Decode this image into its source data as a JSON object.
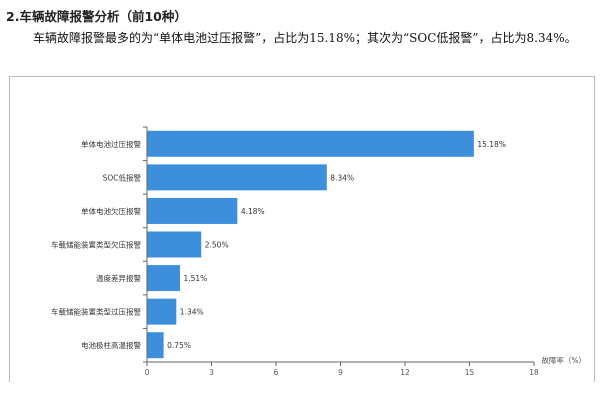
{
  "section": {
    "heading": "2.车辆故障报警分析（前10种）",
    "paragraph": "车辆故障报警最多的为“单体电池过压报警”，占比为15.18%；其次为“SOC低报警”，占比为8.34%。"
  },
  "chart_data": {
    "type": "bar",
    "orientation": "horizontal",
    "categories": [
      "单体电池过压报警",
      "SOC低报警",
      "单体电池欠压报警",
      "车载储能装置类型欠压报警",
      "温度差异报警",
      "车载储能装置类型过压报警",
      "电池极柱高温报警"
    ],
    "values": [
      15.18,
      8.34,
      4.18,
      2.5,
      1.51,
      1.34,
      0.75
    ],
    "value_labels": [
      "15.18%",
      "8.34%",
      "4.18%",
      "2.50%",
      "1.51%",
      "1.34%",
      "0.75%"
    ],
    "xticks": [
      "0",
      "3",
      "6",
      "9",
      "12",
      "15",
      "18"
    ],
    "xlim": [
      0,
      18
    ],
    "xlabel": "故障率（%）",
    "bar_color": "#3d8fdc",
    "grid": false
  }
}
